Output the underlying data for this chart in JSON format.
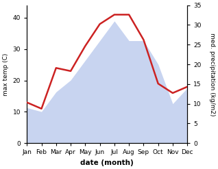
{
  "months": [
    "Jan",
    "Feb",
    "Mar",
    "Apr",
    "May",
    "Jun",
    "Jul",
    "Aug",
    "Sep",
    "Oct",
    "Nov",
    "Dec"
  ],
  "temperature": [
    13,
    11,
    24,
    23,
    31,
    38,
    41,
    41,
    33,
    19,
    16,
    18
  ],
  "precipitation": [
    9,
    8,
    13,
    16,
    21,
    26,
    31,
    26,
    26,
    20,
    10,
    14
  ],
  "temp_color": "#cc2222",
  "precip_fill_color": "#c8d4f0",
  "background_color": "#ffffff",
  "temp_ylim": [
    0,
    44
  ],
  "precip_ylim": [
    0,
    33
  ],
  "temp_yticks": [
    0,
    10,
    20,
    30,
    40
  ],
  "precip_yticks": [
    0,
    5,
    10,
    15,
    20,
    25,
    30,
    35
  ],
  "xlabel": "date (month)",
  "ylabel_left": "max temp (C)",
  "ylabel_right": "med. precipitation (kg/m2)",
  "figsize": [
    3.18,
    2.47
  ],
  "dpi": 100
}
